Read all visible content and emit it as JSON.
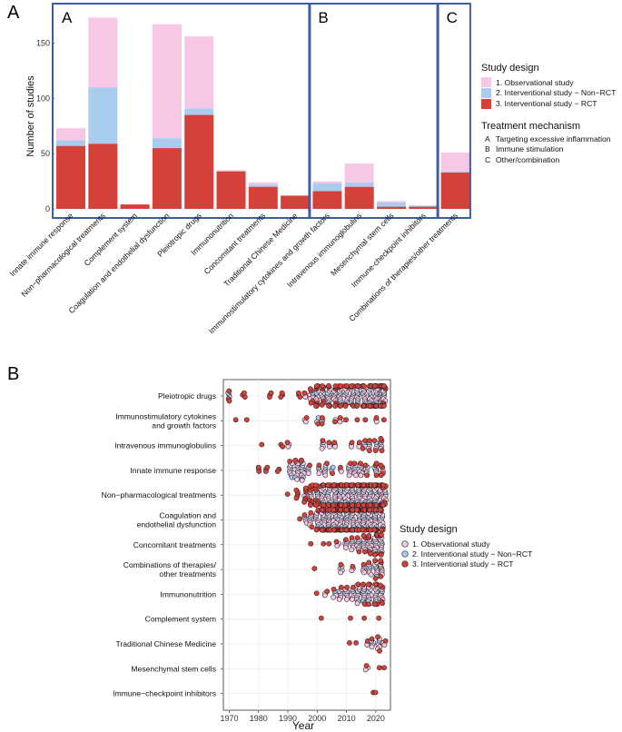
{
  "panel_labels": {
    "a": "A",
    "b": "B"
  },
  "colors": {
    "observational": "#f7c7e6",
    "nonrct": "#a9cdee",
    "rct": "#d6403a",
    "frame": "#3b5ea8",
    "grid": "#ececec"
  },
  "chart_data": [
    {
      "type": "bar",
      "stacked": true,
      "title": "",
      "xlabel": "",
      "ylabel": "Number of studies",
      "ylim": [
        0,
        175
      ],
      "yticks": [
        0,
        50,
        100,
        150
      ],
      "categories": [
        "Innate immune response",
        "Non−pharmacological treatments",
        "Complement system",
        "Coagulation and endothelial dysfunction",
        "Pleiotropic drugs",
        "Immunonutrition",
        "Concomitant treatments",
        "Traditional Chinese Medicine",
        "Immunostimulatory cytokines and growth factors",
        "Intravenous immunoglobulins",
        "Mesenchymal stem cells",
        "Immune-checkpoint inhibitors",
        "Combinations of therapies/other treatments"
      ],
      "series": [
        {
          "name": "3. Interventional study − RCT",
          "values": [
            57,
            59,
            4,
            55,
            85,
            34,
            20,
            12,
            16,
            20,
            2,
            2,
            33
          ]
        },
        {
          "name": "2. Interventional study − Non−RCT",
          "values": [
            5,
            51,
            0,
            9,
            6,
            0,
            2,
            0,
            7,
            4,
            4,
            1,
            1
          ]
        },
        {
          "name": "1. Observational study",
          "values": [
            11,
            63,
            0,
            103,
            65,
            1,
            2,
            0,
            2,
            17,
            1,
            0,
            17
          ]
        }
      ],
      "mechanism_groups": [
        {
          "label": "A",
          "categories": [
            "Innate immune response",
            "Non−pharmacological treatments",
            "Complement system",
            "Coagulation and endothelial dysfunction",
            "Pleiotropic drugs",
            "Immunonutrition",
            "Concomitant treatments",
            "Traditional Chinese Medicine"
          ]
        },
        {
          "label": "B",
          "categories": [
            "Immunostimulatory cytokines and growth factors",
            "Intravenous immunoglobulins",
            "Mesenchymal stem cells",
            "Immune-checkpoint inhibitors"
          ]
        },
        {
          "label": "C",
          "categories": [
            "Combinations of therapies/other treatments"
          ]
        }
      ],
      "legend": {
        "design_title": "Study design",
        "design_items": [
          "1. Observational study",
          "2. Interventional study − Non−RCT",
          "3. Interventional study − RCT"
        ],
        "mechanism_title": "Treatment mechanism",
        "mechanism_items": [
          {
            "key": "A",
            "label": "Targeting excessive inflammation"
          },
          {
            "key": "B",
            "label": "Immune stimulation"
          },
          {
            "key": "C",
            "label": "Other/combination"
          }
        ],
        "position": "right"
      }
    },
    {
      "type": "scatter",
      "subtype": "beeswarm",
      "title": "",
      "xlabel": "Year",
      "ylabel": "",
      "xlim": [
        1968,
        2025
      ],
      "xticks": [
        1970,
        1980,
        1990,
        2000,
        2010,
        2020
      ],
      "categories": [
        [
          "Pleiotropic drugs"
        ],
        [
          "Immunostimulatory cytokines",
          "and growth factors"
        ],
        [
          "Intravenous immunoglobulins"
        ],
        [
          "Innate immune response"
        ],
        [
          "Non−pharmacological treatments"
        ],
        [
          "Coagulation and",
          "endothelial dysfunction"
        ],
        [
          "Concomitant treatments"
        ],
        [
          "Combinations of therapies/",
          "other treatments"
        ],
        [
          "Immunonutrition"
        ],
        [
          "Complement system"
        ],
        [
          "Traditional Chinese Medicine"
        ],
        [
          "Mesenchymal stem cells"
        ],
        [
          "Immune−checkpoint inhibitors"
        ]
      ],
      "series_names": [
        "1. Observational study",
        "2. Interventional study − Non−RCT",
        "3. Interventional study − RCT"
      ],
      "points": [
        [
          1970,
          3,
          3
        ],
        [
          1975,
          0,
          3
        ],
        [
          1984,
          0,
          3
        ],
        [
          1988,
          0,
          3
        ],
        [
          1994,
          0,
          3
        ],
        [
          1996,
          2,
          1
        ],
        [
          1998,
          4,
          4
        ],
        [
          2000,
          6,
          8
        ],
        [
          2002,
          5,
          6
        ],
        [
          2004,
          8,
          6
        ],
        [
          2006,
          6,
          6
        ],
        [
          2008,
          8,
          6
        ],
        [
          2010,
          8,
          5
        ],
        [
          2012,
          8,
          5
        ],
        [
          2014,
          10,
          6
        ],
        [
          2016,
          12,
          10
        ],
        [
          2018,
          14,
          12
        ],
        [
          2020,
          16,
          10
        ],
        [
          2022,
          16,
          10
        ],
        [
          2023,
          6,
          6
        ],
        [
          1972,
          0,
          1
        ],
        [
          1976,
          0,
          1
        ],
        [
          1996,
          2,
          1
        ],
        [
          2000,
          3,
          1
        ],
        [
          2002,
          2,
          2
        ],
        [
          2006,
          1,
          1
        ],
        [
          2008,
          2,
          1
        ],
        [
          2010,
          0,
          1
        ],
        [
          2014,
          0,
          1
        ],
        [
          2016,
          0,
          1
        ],
        [
          2020,
          2,
          1
        ],
        [
          2023,
          0,
          1
        ],
        [
          1981,
          0,
          1
        ],
        [
          1988,
          0,
          2
        ],
        [
          1990,
          2,
          1
        ],
        [
          2002,
          4,
          1
        ],
        [
          2004,
          2,
          1
        ],
        [
          2006,
          2,
          1
        ],
        [
          2012,
          2,
          1
        ],
        [
          2014,
          2,
          1
        ],
        [
          2016,
          3,
          2
        ],
        [
          2018,
          4,
          2
        ],
        [
          2020,
          4,
          2
        ],
        [
          2022,
          4,
          3
        ],
        [
          1980,
          0,
          3
        ],
        [
          1983,
          0,
          3
        ],
        [
          1987,
          0,
          2
        ],
        [
          1991,
          8,
          1
        ],
        [
          1993,
          10,
          1
        ],
        [
          1995,
          12,
          1
        ],
        [
          1997,
          4,
          1
        ],
        [
          2001,
          4,
          1
        ],
        [
          2003,
          6,
          1
        ],
        [
          2005,
          3,
          1
        ],
        [
          2008,
          2,
          1
        ],
        [
          2011,
          6,
          1
        ],
        [
          2013,
          6,
          1
        ],
        [
          2015,
          6,
          1
        ],
        [
          2017,
          4,
          2
        ],
        [
          2020,
          4,
          3
        ],
        [
          2022,
          2,
          4
        ],
        [
          1990,
          0,
          1
        ],
        [
          1993,
          0,
          5
        ],
        [
          1996,
          2,
          6
        ],
        [
          1998,
          4,
          8
        ],
        [
          2000,
          4,
          8
        ],
        [
          2002,
          10,
          12
        ],
        [
          2004,
          14,
          14
        ],
        [
          2006,
          16,
          16
        ],
        [
          2008,
          18,
          16
        ],
        [
          2010,
          18,
          16
        ],
        [
          2012,
          20,
          16
        ],
        [
          2014,
          20,
          16
        ],
        [
          2016,
          20,
          16
        ],
        [
          2018,
          20,
          16
        ],
        [
          2020,
          20,
          16
        ],
        [
          2022,
          14,
          14
        ],
        [
          2023,
          6,
          6
        ],
        [
          1994,
          0,
          1
        ],
        [
          1996,
          4,
          1
        ],
        [
          1998,
          6,
          2
        ],
        [
          2000,
          8,
          4
        ],
        [
          2002,
          14,
          16
        ],
        [
          2004,
          18,
          18
        ],
        [
          2006,
          20,
          18
        ],
        [
          2008,
          20,
          18
        ],
        [
          2010,
          20,
          18
        ],
        [
          2012,
          20,
          18
        ],
        [
          2014,
          20,
          16
        ],
        [
          2016,
          18,
          14
        ],
        [
          2018,
          16,
          12
        ],
        [
          2020,
          14,
          10
        ],
        [
          2022,
          8,
          6
        ],
        [
          1998,
          0,
          1
        ],
        [
          2002,
          0,
          1
        ],
        [
          2004,
          0,
          1
        ],
        [
          2007,
          2,
          1
        ],
        [
          2010,
          4,
          1
        ],
        [
          2012,
          6,
          1
        ],
        [
          2014,
          6,
          2
        ],
        [
          2016,
          6,
          3
        ],
        [
          2018,
          6,
          4
        ],
        [
          2020,
          8,
          5
        ],
        [
          2022,
          8,
          5
        ],
        [
          1999,
          0,
          1
        ],
        [
          2008,
          4,
          1
        ],
        [
          2012,
          2,
          1
        ],
        [
          2016,
          4,
          1
        ],
        [
          2018,
          6,
          1
        ],
        [
          2020,
          8,
          2
        ],
        [
          2022,
          6,
          3
        ],
        [
          2000,
          0,
          1
        ],
        [
          2003,
          2,
          1
        ],
        [
          2006,
          4,
          1
        ],
        [
          2008,
          6,
          1
        ],
        [
          2010,
          6,
          1
        ],
        [
          2012,
          6,
          1
        ],
        [
          2014,
          10,
          1
        ],
        [
          2016,
          10,
          2
        ],
        [
          2018,
          10,
          3
        ],
        [
          2020,
          10,
          4
        ],
        [
          2022,
          6,
          4
        ],
        [
          2001,
          0,
          1
        ],
        [
          2011,
          0,
          1
        ],
        [
          2016,
          0,
          1
        ],
        [
          2021,
          0,
          1
        ],
        [
          2011,
          0,
          1
        ],
        [
          2013,
          0,
          1
        ],
        [
          2017,
          2,
          1
        ],
        [
          2019,
          4,
          1
        ],
        [
          2021,
          6,
          2
        ],
        [
          2023,
          2,
          1
        ],
        [
          2017,
          2,
          1
        ],
        [
          2021,
          0,
          1
        ],
        [
          2023,
          0,
          1
        ],
        [
          2019,
          0,
          1
        ],
        [
          2020,
          0,
          1
        ]
      ],
      "legend": {
        "title": "Study design",
        "items": [
          "1. Observational study",
          "2. Interventional study − Non−RCT",
          "3. Interventional study − RCT"
        ],
        "position": "right"
      }
    }
  ]
}
